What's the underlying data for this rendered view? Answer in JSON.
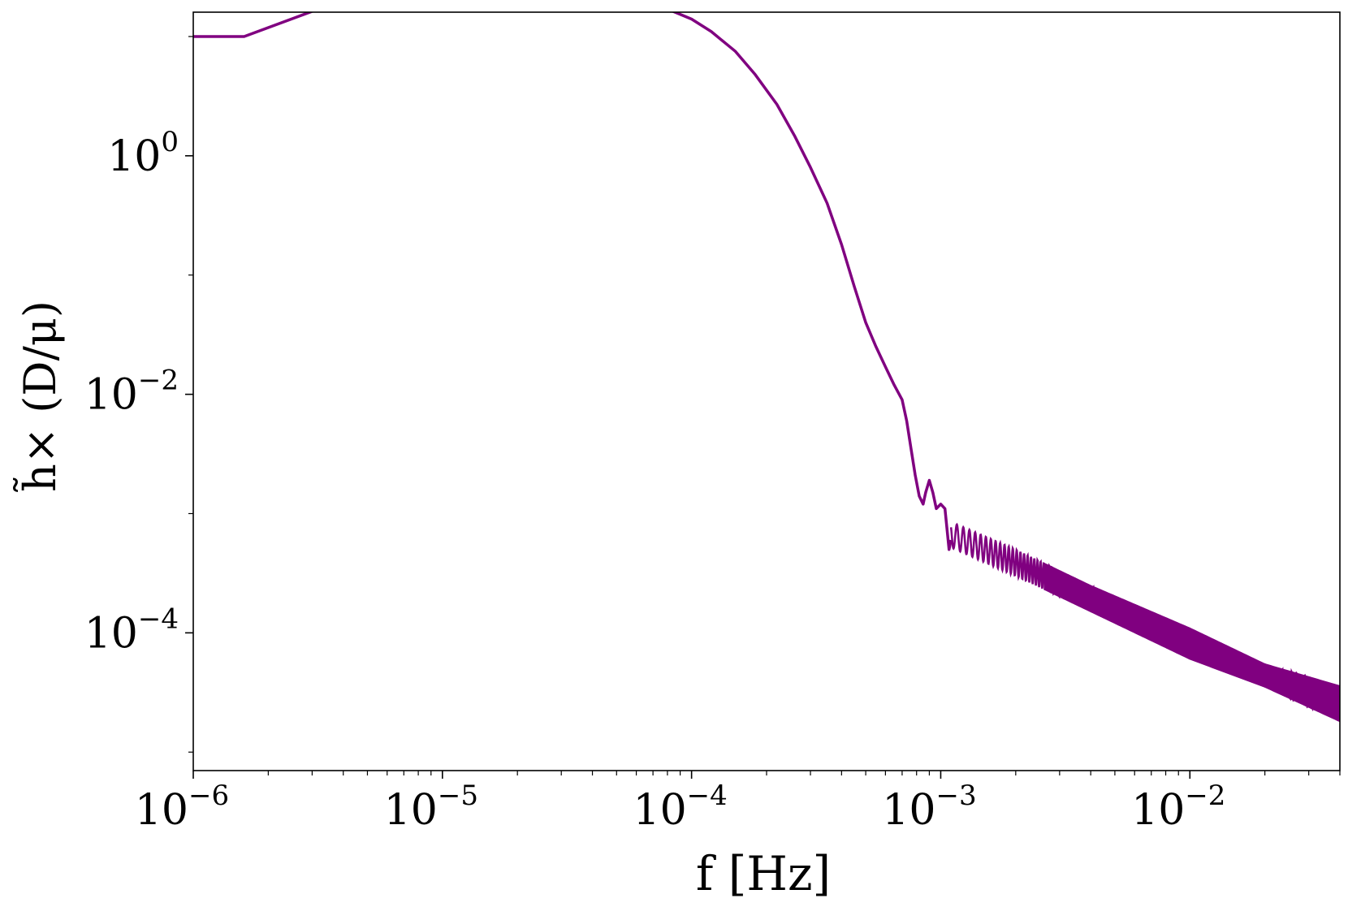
{
  "chart_data": {
    "type": "line",
    "xscale": "log",
    "yscale": "log",
    "xlim": [
      1e-06,
      0.04
    ],
    "ylim": [
      7e-06,
      16
    ],
    "xlabel": "f [Hz]",
    "ylabel": "h̃× (D/μ)",
    "xticks": [
      {
        "value": 1e-06,
        "base": "10",
        "exp": "−6"
      },
      {
        "value": 1e-05,
        "base": "10",
        "exp": "−5"
      },
      {
        "value": 0.0001,
        "base": "10",
        "exp": "−4"
      },
      {
        "value": 0.001,
        "base": "10",
        "exp": "−3"
      },
      {
        "value": 0.01,
        "base": "10",
        "exp": "−2"
      }
    ],
    "yticks": [
      {
        "value": 1,
        "base": "10",
        "exp": "0"
      },
      {
        "value": 0.01,
        "base": "10",
        "exp": "−2"
      },
      {
        "value": 0.0001,
        "base": "10",
        "exp": "−4"
      }
    ],
    "grid": false,
    "series": [
      {
        "color": "#800080",
        "points": [
          [
            1e-06,
            10
          ],
          [
            1.6e-06,
            10
          ],
          [
            3.3e-06,
            17.5
          ],
          [
            5e-06,
            17
          ],
          [
            6.6e-06,
            20.5
          ],
          [
            8.3e-06,
            20
          ],
          [
            1e-05,
            21.5
          ],
          [
            1.3e-05,
            22
          ],
          [
            1.6e-05,
            22.5
          ],
          [
            2e-05,
            23
          ],
          [
            2.5e-05,
            23.2
          ],
          [
            3e-05,
            23
          ],
          [
            4e-05,
            22.5
          ],
          [
            5e-05,
            21.5
          ],
          [
            6e-05,
            20
          ],
          [
            7e-05,
            18.5
          ],
          [
            8e-05,
            17
          ],
          [
            0.0001,
            14
          ],
          [
            0.00012,
            11
          ],
          [
            0.00015,
            7.5
          ],
          [
            0.00018,
            4.8
          ],
          [
            0.00022,
            2.7
          ],
          [
            0.00026,
            1.45
          ],
          [
            0.0003,
            0.8
          ],
          [
            0.00035,
            0.4
          ],
          [
            0.0004,
            0.18
          ],
          [
            0.00045,
            0.08
          ],
          [
            0.0005,
            0.04
          ],
          [
            0.00055,
            0.025
          ],
          [
            0.0006,
            0.017
          ],
          [
            0.00065,
            0.012
          ],
          [
            0.0007,
            0.009
          ],
          [
            0.00073,
            0.006
          ],
          [
            0.00076,
            0.0035
          ],
          [
            0.00079,
            0.0021
          ],
          [
            0.00082,
            0.0014
          ],
          [
            0.00085,
            0.0012
          ],
          [
            0.00087,
            0.0015
          ],
          [
            0.0009,
            0.0019
          ],
          [
            0.00093,
            0.0015
          ],
          [
            0.00096,
            0.0011
          ],
          [
            0.001,
            0.0012
          ],
          [
            0.00104,
            0.0011
          ],
          [
            0.00108,
            0.0005
          ],
          [
            0.0011,
            0.0006
          ]
        ],
        "band": {
          "x": [
            0.0011,
            0.002,
            0.004,
            0.01,
            0.02,
            0.04
          ],
          "upper": [
            0.00085,
            0.0005,
            0.00025,
            0.00011,
            5.5e-05,
            3.6e-05
          ],
          "lower": [
            0.00052,
            0.0003,
            0.00015,
            6e-05,
            3.5e-05,
            1.8e-05
          ]
        }
      }
    ]
  }
}
